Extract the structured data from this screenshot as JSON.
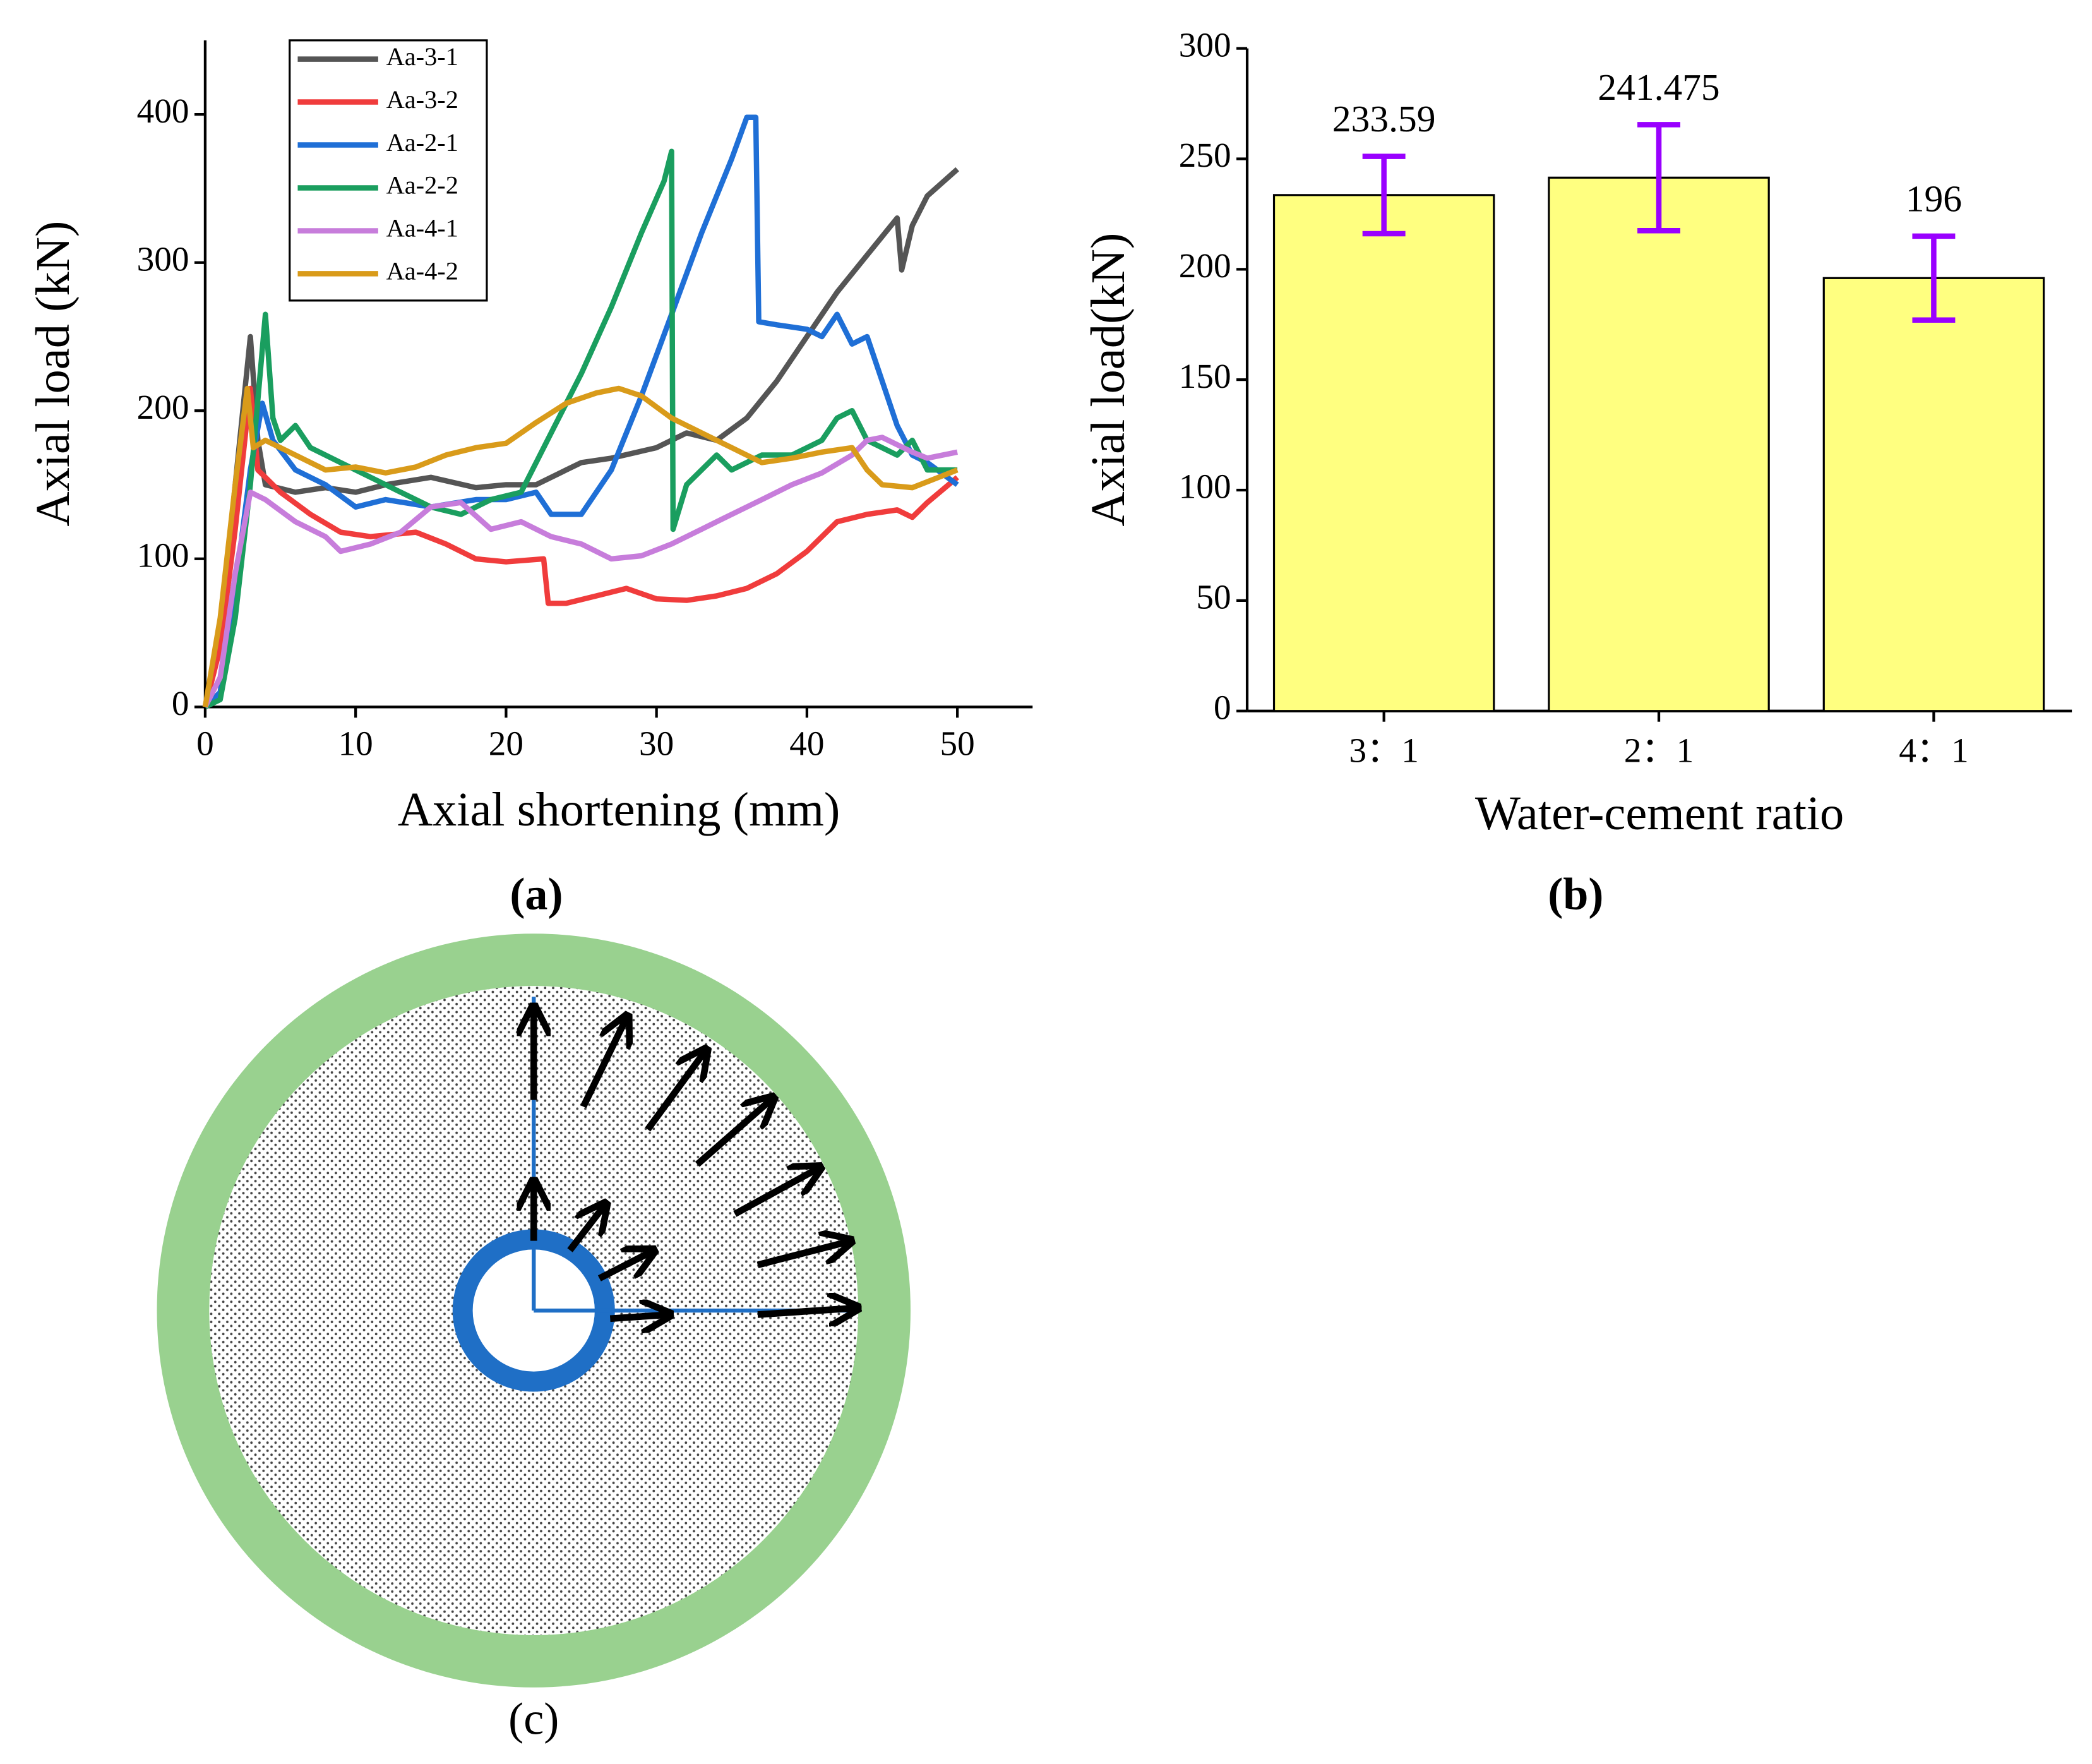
{
  "chart_data": [
    {
      "type": "line",
      "label": "(a)",
      "xlabel": "Axial shortening (mm)",
      "ylabel": "Axial load (kN)",
      "xlim": [
        0,
        55
      ],
      "xticks": [
        0,
        10,
        20,
        30,
        40,
        50
      ],
      "ylim": [
        0,
        450
      ],
      "yticks": [
        0,
        100,
        200,
        300,
        400
      ],
      "legend": "upper left",
      "series": [
        {
          "name": "Aa-3-1",
          "color": "#555555",
          "x": [
            0,
            1,
            2,
            3,
            3.5,
            4,
            6,
            8,
            10,
            12,
            15,
            18,
            20,
            22,
            24,
            25,
            27,
            30,
            32,
            34,
            36,
            38,
            40,
            42,
            44,
            46,
            46.3,
            47,
            48,
            50
          ],
          "values": [
            0,
            50,
            150,
            250,
            180,
            150,
            145,
            148,
            145,
            150,
            155,
            148,
            150,
            150,
            160,
            165,
            168,
            175,
            185,
            180,
            195,
            220,
            250,
            280,
            305,
            330,
            295,
            325,
            345,
            363
          ]
        },
        {
          "name": "Aa-3-2",
          "color": "#f03c3c",
          "x": [
            0,
            1,
            2,
            3,
            3.5,
            4,
            5,
            7,
            9,
            11,
            14,
            16,
            18,
            20,
            22.5,
            22.8,
            24,
            26,
            28,
            30,
            32,
            34,
            36,
            38,
            40,
            42,
            44,
            46,
            47,
            48,
            50
          ],
          "values": [
            0,
            40,
            120,
            215,
            160,
            155,
            145,
            130,
            118,
            115,
            118,
            110,
            100,
            98,
            100,
            70,
            70,
            75,
            80,
            73,
            72,
            75,
            80,
            90,
            105,
            125,
            130,
            133,
            128,
            138,
            155
          ]
        },
        {
          "name": "Aa-2-1",
          "color": "#1f6fd6",
          "x": [
            0,
            1,
            2,
            3,
            3.8,
            4.5,
            6,
            8,
            10,
            12,
            15,
            18,
            20,
            22,
            23,
            25,
            27,
            29,
            31,
            33,
            35,
            36,
            36.6,
            36.8,
            38,
            40,
            41,
            42,
            43,
            44,
            45,
            46,
            47,
            48,
            50
          ],
          "values": [
            0,
            10,
            80,
            160,
            205,
            180,
            160,
            150,
            135,
            140,
            135,
            140,
            140,
            145,
            130,
            130,
            160,
            210,
            265,
            320,
            370,
            398,
            398,
            260,
            258,
            255,
            250,
            265,
            245,
            250,
            220,
            190,
            170,
            165,
            150
          ]
        },
        {
          "name": "Aa-2-2",
          "color": "#1a9e5f",
          "x": [
            0,
            1,
            2,
            3,
            4,
            4.5,
            5,
            6,
            7,
            9,
            11,
            13,
            15,
            17,
            19,
            21,
            23,
            25,
            27,
            29,
            30.5,
            31,
            31.1,
            32,
            34,
            35,
            37,
            39,
            41,
            42,
            43,
            44,
            46,
            47,
            48,
            50
          ],
          "values": [
            0,
            5,
            60,
            150,
            265,
            195,
            180,
            190,
            175,
            165,
            155,
            145,
            135,
            130,
            140,
            145,
            185,
            225,
            270,
            320,
            355,
            375,
            120,
            150,
            170,
            160,
            170,
            170,
            180,
            195,
            200,
            180,
            170,
            180,
            160,
            160
          ]
        },
        {
          "name": "Aa-4-1",
          "color": "#c77ddb",
          "x": [
            0,
            1,
            2,
            3,
            4,
            6,
            8,
            9,
            11,
            13,
            15,
            17,
            19,
            21,
            23,
            25,
            27,
            29,
            31,
            33,
            35,
            37,
            39,
            41,
            43,
            44,
            45,
            47,
            48,
            50
          ],
          "values": [
            0,
            20,
            90,
            145,
            140,
            125,
            115,
            105,
            110,
            118,
            135,
            138,
            120,
            125,
            115,
            110,
            100,
            102,
            110,
            120,
            130,
            140,
            150,
            158,
            170,
            180,
            182,
            172,
            168,
            172
          ]
        },
        {
          "name": "Aa-4-2",
          "color": "#d99b1a",
          "x": [
            0,
            1,
            2,
            2.8,
            3.2,
            4,
            6,
            8,
            10,
            12,
            14,
            16,
            18,
            20,
            22,
            24,
            26,
            27.5,
            29,
            31,
            33,
            35,
            37,
            39,
            41,
            43,
            44,
            45,
            47,
            50
          ],
          "values": [
            0,
            60,
            150,
            215,
            175,
            180,
            170,
            160,
            162,
            158,
            162,
            170,
            175,
            178,
            192,
            205,
            212,
            215,
            210,
            195,
            185,
            175,
            165,
            168,
            172,
            175,
            160,
            150,
            148,
            160
          ]
        }
      ]
    },
    {
      "type": "bar",
      "label": "(b)",
      "xlabel": "Water-cement ratio",
      "ylabel": "Axial load(kN)",
      "categories": [
        "3：1",
        "2：1",
        "4：1"
      ],
      "values": [
        233.59,
        241.475,
        196
      ],
      "errors": [
        17.5,
        24,
        19
      ],
      "color": "#ffff80",
      "error_color": "#9900ff",
      "ylim": [
        0,
        300
      ],
      "yticks": [
        0,
        50,
        100,
        150,
        200,
        250,
        300
      ]
    }
  ],
  "diagram": {
    "label": "(c)"
  }
}
